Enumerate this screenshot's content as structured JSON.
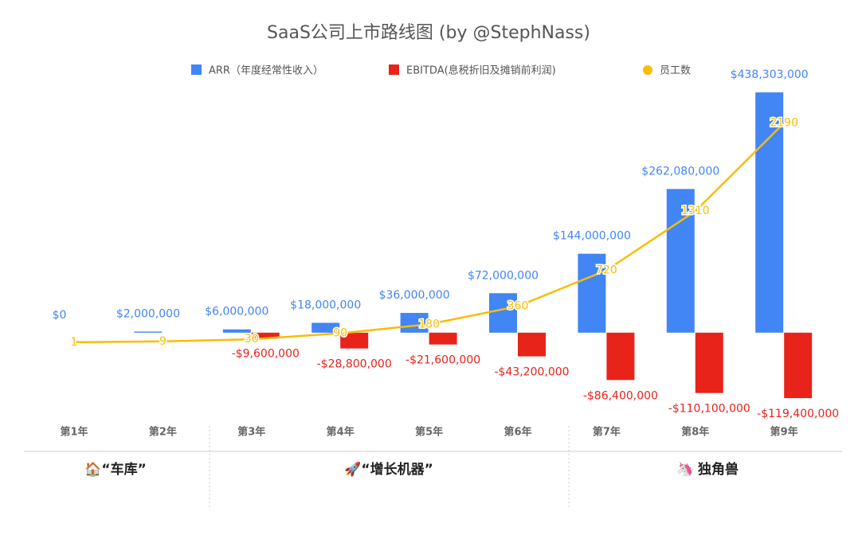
{
  "chart_data": {
    "type": "bar_line",
    "title": "SaaS公司上市路线图 (by @StephNass)",
    "categories": [
      "第1年",
      "第2年",
      "第3年",
      "第4年",
      "第5年",
      "第6年",
      "第7年",
      "第8年",
      "第9年"
    ],
    "series": [
      {
        "name": "ARR（年度经常性收入）",
        "color": "#4285f4",
        "values": [
          0,
          2000000,
          6000000,
          18000000,
          36000000,
          72000000,
          144000000,
          262080000,
          438303000
        ],
        "value_labels": [
          "$0",
          "$2,000,000",
          "$6,000,000",
          "$18,000,000",
          "$36,000,000",
          "$72,000,000",
          "$144,000,000",
          "$262,080,000",
          "$438,303,000"
        ]
      },
      {
        "name": "EBITDA(息税折旧及摊销前利润)",
        "color": "#e8231a",
        "values": [
          null,
          null,
          -9600000,
          -28800000,
          -21600000,
          -43200000,
          -86400000,
          -110100000,
          -119400000
        ],
        "value_labels": [
          null,
          null,
          "-$9,600,000",
          "-$28,800,000",
          "-$21,600,000",
          "-$43,200,000",
          "-$86,400,000",
          "-$110,100,000",
          "-$119,400,000"
        ]
      },
      {
        "name": "员工数",
        "color": "#fbbc04",
        "axis": "y2",
        "values": [
          1,
          9,
          30,
          90,
          180,
          360,
          720,
          1310,
          2190
        ]
      }
    ],
    "ylim": [
      -160000000,
      450000000
    ],
    "y2lim": [
      -780,
      2560
    ],
    "stages": [
      "🏠“车库”",
      "🚀“增长机器”",
      "🦄 独角兽"
    ]
  }
}
